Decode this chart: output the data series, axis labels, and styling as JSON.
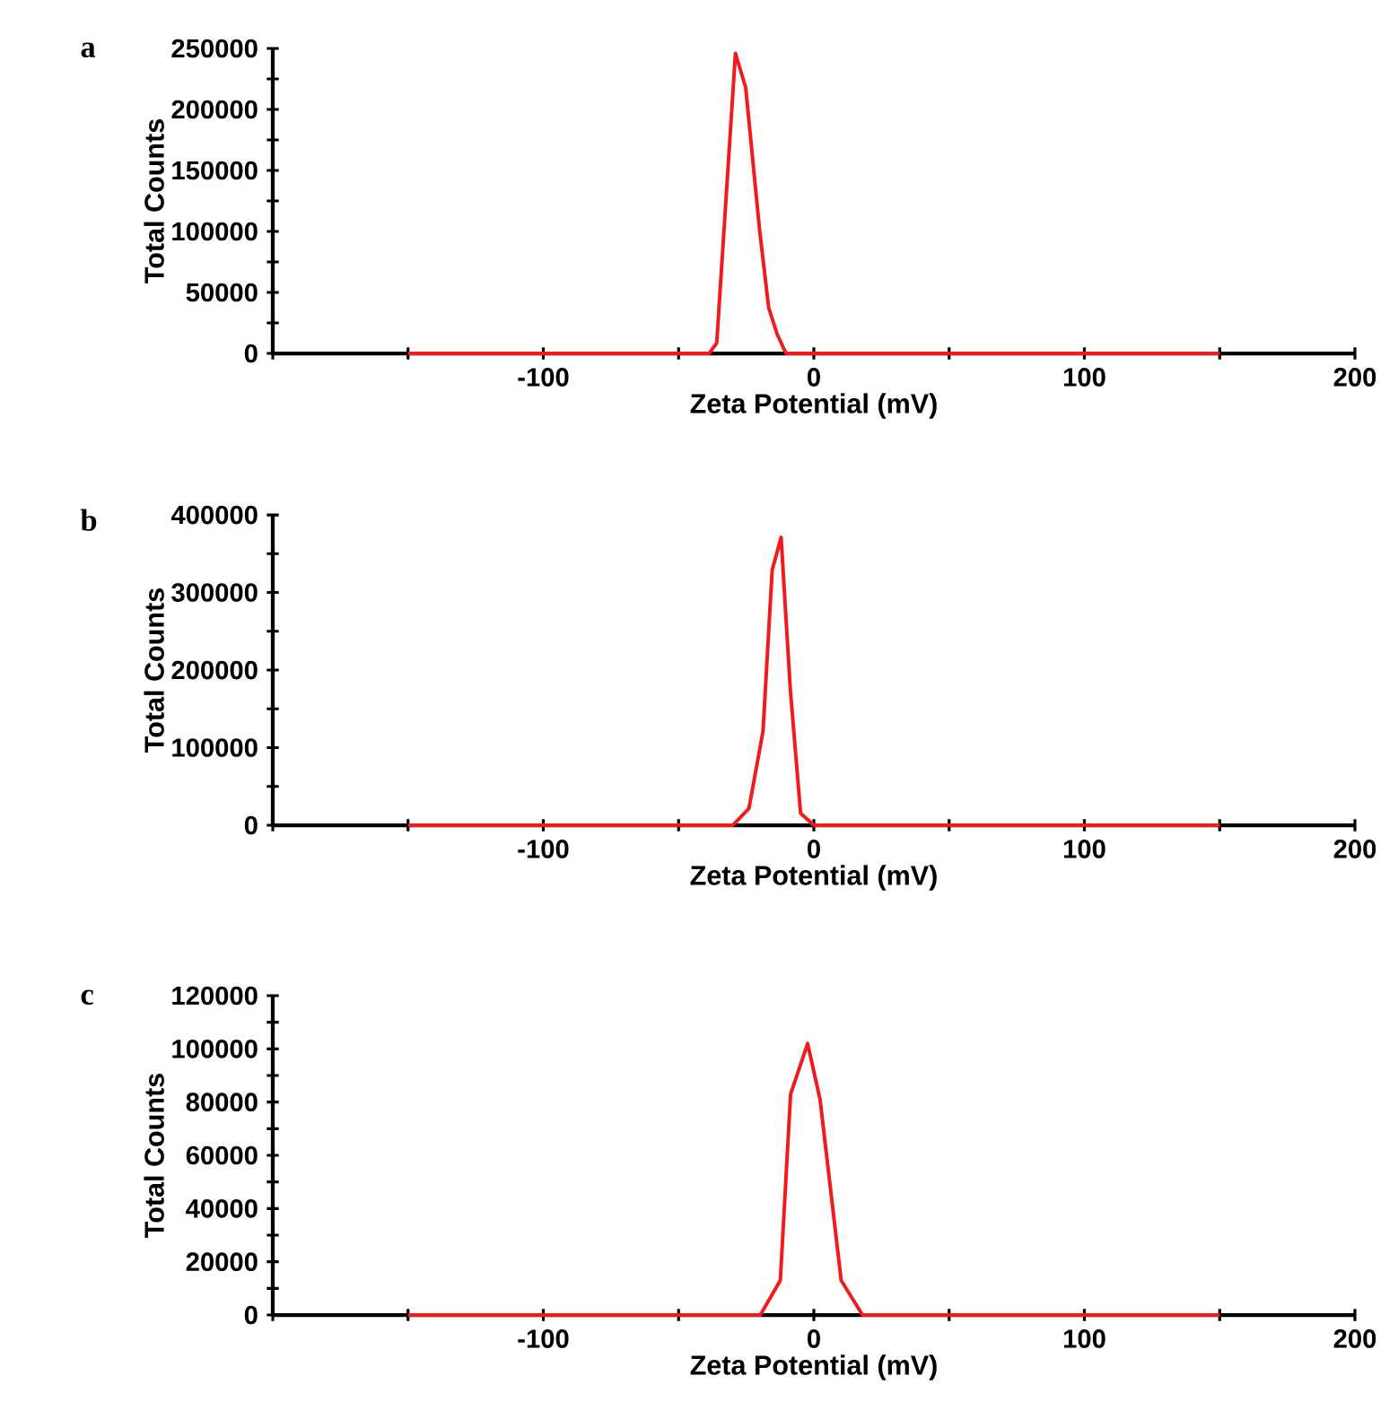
{
  "chart_data": [
    {
      "type": "line",
      "title": "a",
      "xlabel": "Zeta Potential (mV)",
      "ylabel": "Total Counts",
      "color": "#ee1c1c",
      "line_style": "solid",
      "x": [
        -150,
        -38.7,
        -35.9,
        -29,
        -25.2,
        -20.1,
        -16.7,
        -13.6,
        -10.3,
        150
      ],
      "values": [
        0,
        0,
        8600,
        246000,
        218000,
        102000,
        37500,
        16000,
        0,
        0
      ],
      "xlim": [
        -200,
        200
      ],
      "xticks": [
        {
          "value": -200,
          "label": null
        },
        {
          "value": -150,
          "label": null
        },
        -100,
        {
          "value": -50,
          "label": null
        },
        0,
        {
          "value": 50,
          "label": null
        },
        100,
        {
          "value": 150,
          "label": null
        },
        200
      ],
      "ylim": [
        0,
        250000
      ],
      "yticks": [
        0,
        {
          "value": 25000,
          "label": null
        },
        50000,
        {
          "value": 75000,
          "label": null
        },
        100000,
        {
          "value": 125000,
          "label": null
        },
        150000,
        {
          "value": 175000,
          "label": null
        },
        200000,
        {
          "value": 225000,
          "label": null
        },
        250000
      ]
    },
    {
      "type": "line",
      "title": "b",
      "xlabel": "Zeta Potential (mV)",
      "ylabel": "Total Counts",
      "color": "#ee1c1c",
      "line_style": "solid",
      "x": [
        -150,
        -30,
        -24,
        -18.8,
        -15.4,
        -12.1,
        -8.7,
        -4.9,
        0,
        150
      ],
      "values": [
        0,
        0,
        21500,
        121000,
        329000,
        371000,
        175000,
        15400,
        0,
        0
      ],
      "xlim": [
        -200,
        200
      ],
      "xticks": [
        {
          "value": -200,
          "label": null
        },
        {
          "value": -150,
          "label": null
        },
        -100,
        {
          "value": -50,
          "label": null
        },
        0,
        {
          "value": 50,
          "label": null
        },
        100,
        {
          "value": 150,
          "label": null
        },
        200
      ],
      "ylim": [
        0,
        400000
      ],
      "yticks": [
        0,
        {
          "value": 50000,
          "label": null
        },
        100000,
        {
          "value": 150000,
          "label": null
        },
        200000,
        {
          "value": 250000,
          "label": null
        },
        300000,
        {
          "value": 350000,
          "label": null
        },
        400000
      ]
    },
    {
      "type": "line",
      "title": "c",
      "xlabel": "Zeta Potential (mV)",
      "ylabel": "Total Counts",
      "color": "#ee1c1c",
      "line_style": "solid",
      "x": [
        -150,
        -19.8,
        -12.4,
        -8.6,
        -2.3,
        2.3,
        10.1,
        18,
        150
      ],
      "values": [
        0,
        0,
        13000,
        83000,
        102000,
        81000,
        13000,
        0,
        0
      ],
      "xlim": [
        -200,
        200
      ],
      "xticks": [
        {
          "value": -200,
          "label": null
        },
        {
          "value": -150,
          "label": null
        },
        -100,
        {
          "value": -50,
          "label": null
        },
        0,
        {
          "value": 50,
          "label": null
        },
        100,
        {
          "value": 150,
          "label": null
        },
        200
      ],
      "ylim": [
        0,
        120000
      ],
      "yticks": [
        0,
        {
          "value": 10000,
          "label": null
        },
        20000,
        {
          "value": 30000,
          "label": null
        },
        40000,
        {
          "value": 50000,
          "label": null
        },
        60000,
        {
          "value": 70000,
          "label": null
        },
        80000,
        {
          "value": 90000,
          "label": null
        },
        100000,
        {
          "value": 110000,
          "label": null
        },
        120000
      ]
    }
  ]
}
